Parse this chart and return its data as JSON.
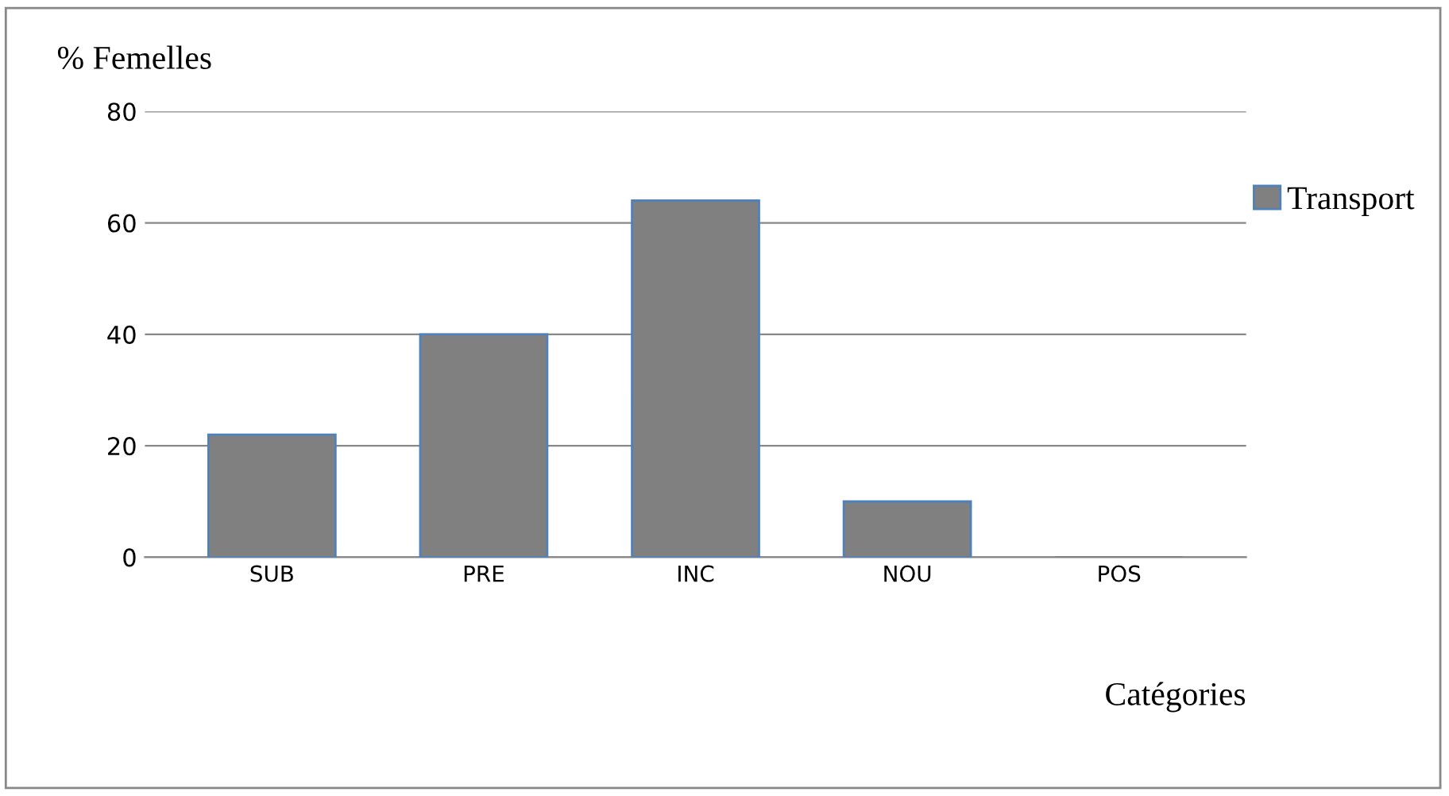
{
  "chart_data": {
    "type": "bar",
    "ylabel": "% Femelles",
    "xlabel": "Catégories",
    "categories": [
      "SUB",
      "PRE",
      "INC",
      "NOU",
      "POS"
    ],
    "series": [
      {
        "name": "Transport",
        "color": "#808080",
        "values": [
          22,
          40,
          64,
          10,
          0
        ]
      }
    ],
    "ylim": [
      0,
      80
    ],
    "yticks": [
      0,
      20,
      40,
      60,
      80
    ],
    "grid": "y",
    "legend": "top right"
  }
}
